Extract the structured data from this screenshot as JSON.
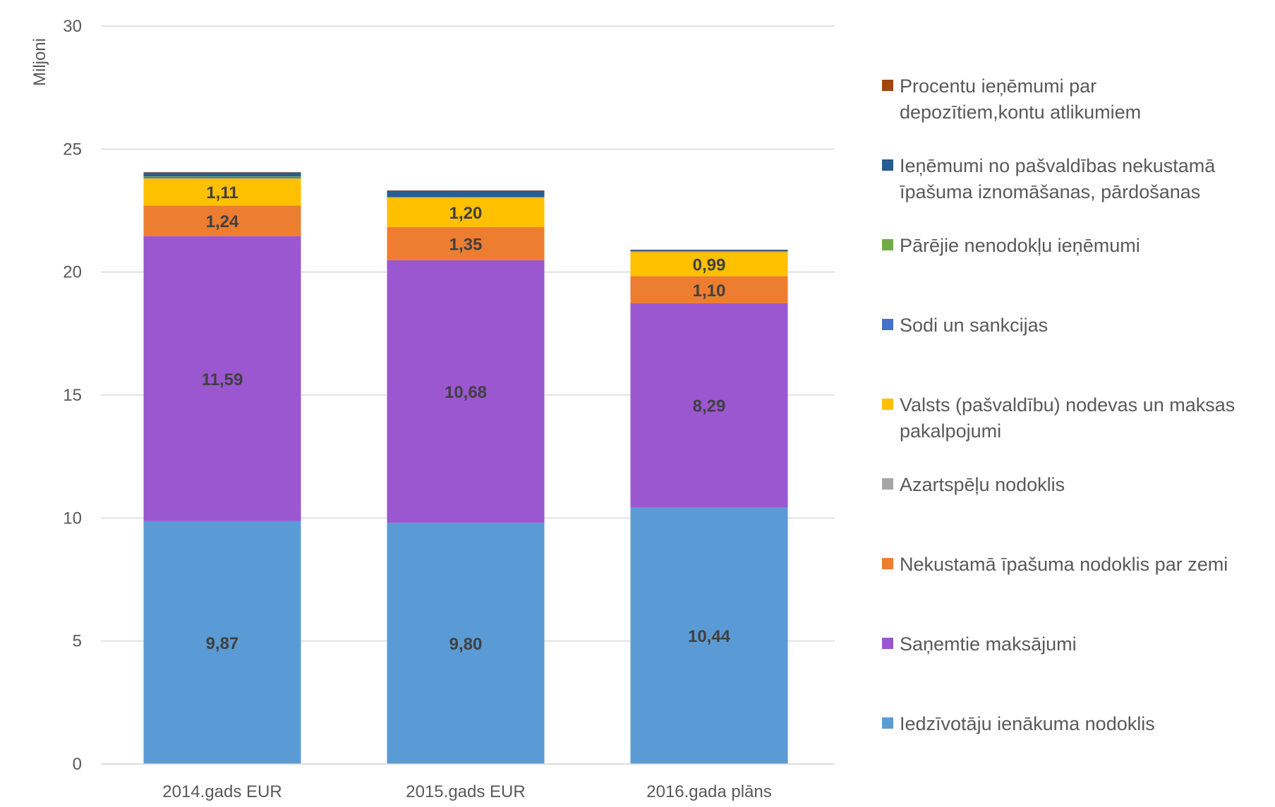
{
  "chart_data": {
    "type": "bar",
    "stacked": true,
    "categories": [
      "2014.gads EUR",
      "2015.gads EUR",
      "2016.gada plāns"
    ],
    "ylabel": "Miljoni",
    "ylim": [
      0,
      30
    ],
    "yticks": [
      0,
      5,
      10,
      15,
      20,
      25,
      30
    ],
    "grid": true,
    "legend_position": "right",
    "series": [
      {
        "name": "Iedzīvotāju ienākuma nodoklis",
        "color": "#5b9bd5",
        "values": [
          9.87,
          9.8,
          10.44
        ],
        "labels": [
          "9,87",
          "9,80",
          "10,44"
        ]
      },
      {
        "name": "Saņemtie maksājumi",
        "color": "#9b57cf",
        "values": [
          11.59,
          10.68,
          8.29
        ],
        "labels": [
          "11,59",
          "10,68",
          "8,29"
        ]
      },
      {
        "name": "Nekustamā īpašuma nodoklis par zemi",
        "color": "#ed7d31",
        "values": [
          1.24,
          1.35,
          1.1
        ],
        "labels": [
          "1,24",
          "1,35",
          "1,10"
        ]
      },
      {
        "name": "Azartspēļu nodoklis",
        "color": "#a5a5a5",
        "values": [
          0,
          0,
          0
        ],
        "labels": [
          "",
          "",
          ""
        ]
      },
      {
        "name": "Valsts (pašvaldību) nodevas un maksas pakalpojumi",
        "color": "#ffc000",
        "values": [
          1.11,
          1.2,
          0.99
        ],
        "labels": [
          "1,11",
          "1,20",
          "0,99"
        ]
      },
      {
        "name": "Sodi un sankcijas",
        "color": "#4472c4",
        "values": [
          0.06,
          0.02,
          0.01
        ],
        "labels": [
          "",
          "",
          ""
        ]
      },
      {
        "name": "Pārējie nenodokļu ieņēmumi",
        "color": "#70ad47",
        "values": [
          0.02,
          0.01,
          0.02
        ],
        "labels": [
          "",
          "",
          ""
        ]
      },
      {
        "name": "Ieņēmumi no pašvaldības nekustamā īpašuma iznomāšanas, pārdošanas",
        "color": "#255e91",
        "values": [
          0.16,
          0.25,
          0.05
        ],
        "labels": [
          "",
          "",
          ""
        ]
      },
      {
        "name": "Procentu ieņēmumi par depozītiem,kontu atlikumiem",
        "color": "#9e480e",
        "values": [
          0.01,
          0.01,
          0.01
        ],
        "labels": [
          "",
          "",
          ""
        ]
      }
    ],
    "legend_lines": [
      [
        "Procentu ieņēmumi par",
        "depozītiem,kontu atlikumiem"
      ],
      [
        "Ieņēmumi no pašvaldības nekustamā",
        "īpašuma iznomāšanas, pārdošanas"
      ],
      [
        "Pārējie nenodokļu ieņēmumi"
      ],
      [
        "Sodi un sankcijas"
      ],
      [
        "Valsts (pašvaldību) nodevas un maksas",
        "pakalpojumi"
      ],
      [
        "Azartspēļu nodoklis"
      ],
      [
        "Nekustamā īpašuma nodoklis par zemi"
      ],
      [
        "Saņemtie maksājumi"
      ],
      [
        "Iedzīvotāju ienākuma nodoklis"
      ]
    ],
    "legend_order": [
      8,
      7,
      6,
      5,
      4,
      3,
      2,
      1,
      0
    ]
  }
}
